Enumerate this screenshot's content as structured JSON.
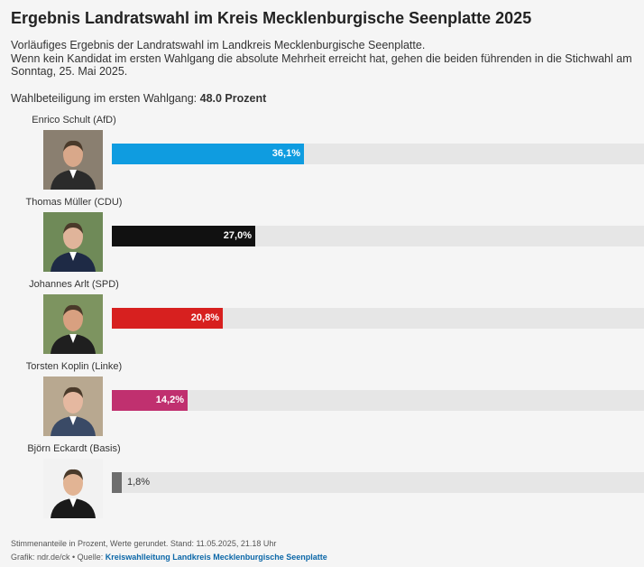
{
  "title": "Ergebnis Landratswahl im Kreis Mecklenburgische Seenplatte 2025",
  "description": [
    "Vorläufiges Ergebnis der Landratswahl im Landkreis Mecklenburgische Seenplatte.",
    "Wenn kein Kandidat im ersten Wahlgang die absolute Mehrheit erreicht hat, gehen die beiden führenden in die Stichwahl am",
    "Sonntag, 25. Mai 2025."
  ],
  "turnout": {
    "label": "Wahlbeteiligung im ersten Wahlgang:",
    "value": "48.0 Prozent"
  },
  "chart_data": {
    "type": "bar",
    "orientation": "horizontal",
    "xlim": [
      0,
      100
    ],
    "unit": "%",
    "categories": [
      "Enrico Schult (AfD)",
      "Thomas Müller (CDU)",
      "Johannes Arlt (SPD)",
      "Torsten Koplin (Linke)",
      "Björn Eckardt (Basis)"
    ],
    "values": [
      36.1,
      27.0,
      20.8,
      14.2,
      1.8
    ],
    "value_labels": [
      "36,1%",
      "27,0%",
      "20,8%",
      "14,2%",
      "1,8%"
    ],
    "colors": [
      "#0f9ce0",
      "#111111",
      "#d7201f",
      "#c0306f",
      "#6e6e6e"
    ],
    "photo_icons": [
      "candidate-photo-schult",
      "candidate-photo-mueller",
      "candidate-photo-arlt",
      "candidate-photo-koplin",
      "candidate-photo-eckardt"
    ]
  },
  "footer": {
    "note": "Stimmenanteile in Prozent, Werte gerundet. Stand: 11.05.2025, 21.18 Uhr",
    "credit": "Grafik: ndr.de/ck • Quelle:",
    "source": "Kreiswahlleitung Landkreis Mecklenburgische Seenplatte"
  }
}
